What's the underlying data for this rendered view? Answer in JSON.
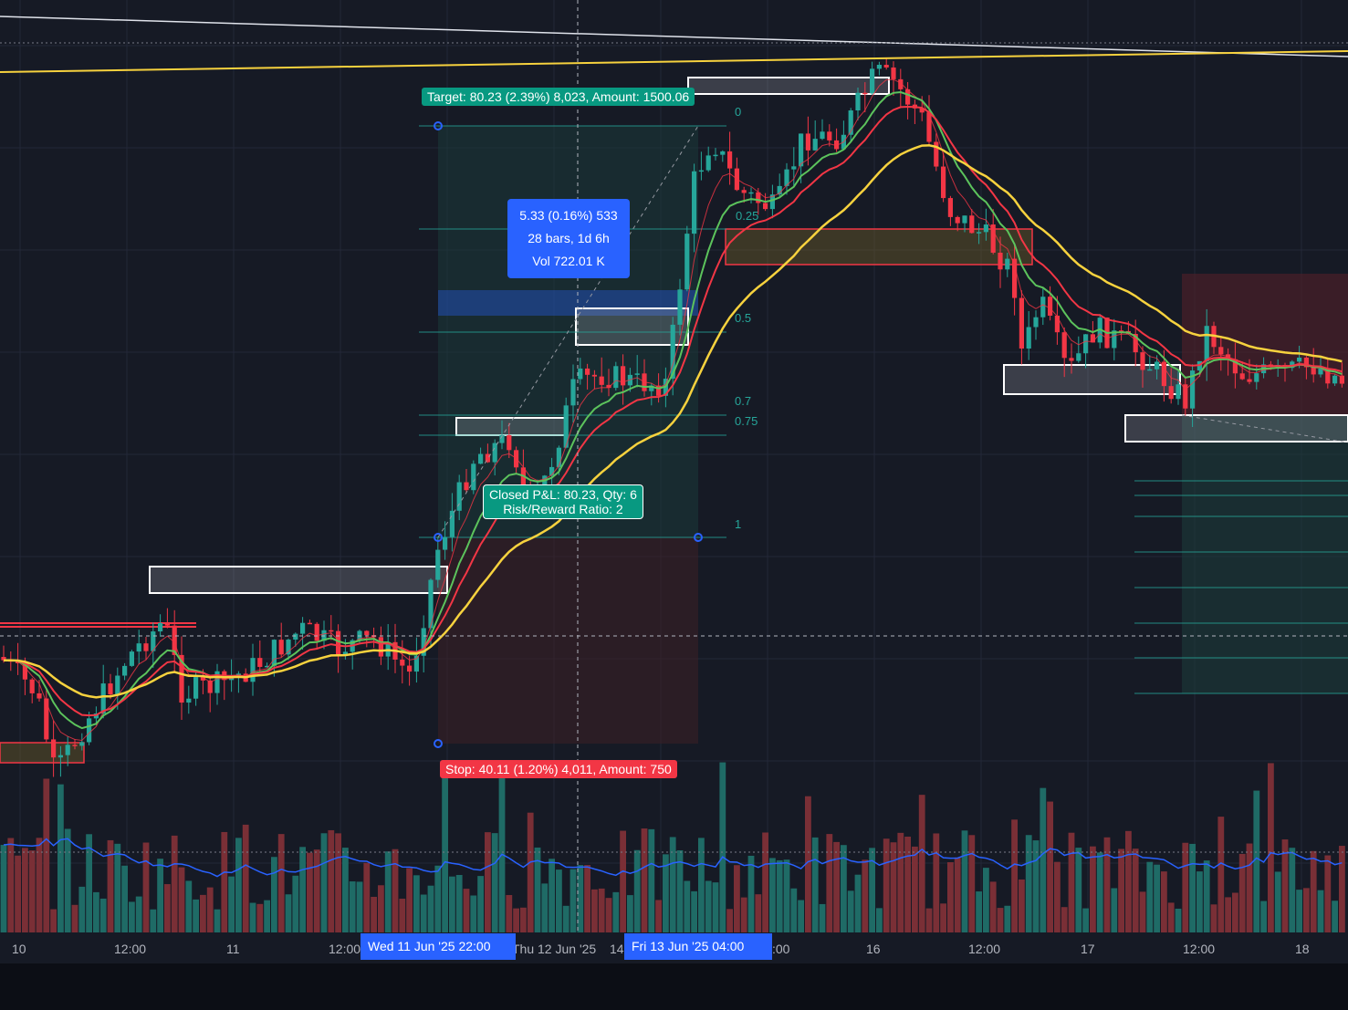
{
  "chart_data": {
    "type": "candlestick",
    "time_axis": {
      "labels": [
        "10",
        "12:00",
        "11",
        "12:00",
        "Thu 12 Jun '25",
        "14",
        ":00",
        "16",
        "12:00",
        "17",
        "12:00",
        "18"
      ],
      "crosshair_labels": [
        "Wed 11 Jun '25   22:00",
        "Fri 13 Jun '25   04:00"
      ]
    },
    "position": {
      "target_label": "Target: 80.23 (2.39%) 8,023, Amount: 1500.06",
      "stop_label": "Stop: 40.11 (1.20%) 4,011, Amount: 750",
      "pnl_line1": "Closed P&L: 80.23, Qty: 6",
      "pnl_line2": "Risk/Reward Ratio: 2"
    },
    "measure": {
      "line1": "5.33 (0.16%) 533",
      "line2": "28 bars, 1d 6h",
      "line3": "Vol 722.01 K"
    },
    "fib_levels": [
      "0",
      "0.25",
      "0.5",
      "0.7",
      "0.75",
      "1"
    ],
    "series": [
      {
        "type": "candles",
        "bullish_color": "#26a69a",
        "bearish_color": "#f23645"
      },
      {
        "type": "line",
        "color": "#5cc35c"
      },
      {
        "type": "line",
        "color": "#f23645"
      },
      {
        "type": "line",
        "color": "#f7d23e"
      },
      {
        "type": "volume_ma",
        "color": "#2962ff"
      }
    ],
    "colors": {
      "background": "#161a25",
      "up": "#26a69a",
      "down": "#f23645",
      "ma_green": "#5cc35c",
      "ma_yellow": "#f7d23e",
      "ma_red": "#f23645",
      "accent_blue": "#2962ff"
    }
  }
}
